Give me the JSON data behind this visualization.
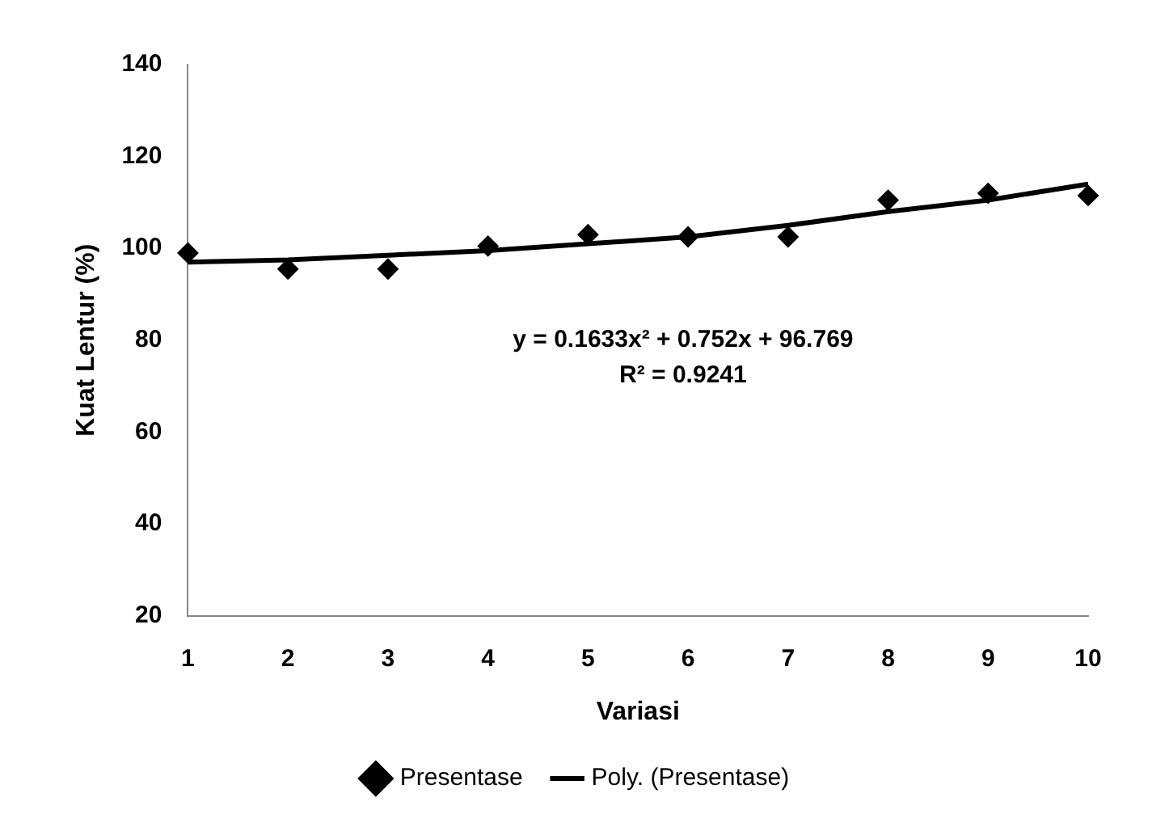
{
  "chart_data": {
    "type": "scatter",
    "xlabel": "Variasi",
    "ylabel": "Kuat Lentur (%)",
    "x": [
      1,
      2,
      3,
      4,
      5,
      6,
      7,
      8,
      9,
      10
    ],
    "series": [
      {
        "name": "Presentase",
        "color": "#000000",
        "marker": "diamond",
        "values": [
          99,
          95.5,
          95.5,
          100.5,
          103,
          102.5,
          102.5,
          110.5,
          112,
          111.5
        ]
      },
      {
        "name": "Poly. (Presentase)",
        "type": "line",
        "color": "#000000",
        "marker": "none",
        "line_style": "solid",
        "x": [
          1,
          2,
          3,
          4,
          5,
          6,
          7,
          8,
          9,
          10
        ],
        "values": [
          97,
          97.5,
          98.5,
          99.5,
          101,
          102.5,
          105,
          108,
          110.5,
          114
        ]
      }
    ],
    "xlim": [
      1,
      10
    ],
    "xticks": [
      1,
      2,
      3,
      4,
      5,
      6,
      7,
      8,
      9,
      10
    ],
    "ylim": [
      20,
      140
    ],
    "yticks": [
      20,
      40,
      60,
      80,
      100,
      120,
      140
    ],
    "grid": false,
    "legend": "bottom",
    "annotations": [
      "y = 0.1633x² + 0.752x + 96.769",
      "R² = 0.9241"
    ]
  }
}
